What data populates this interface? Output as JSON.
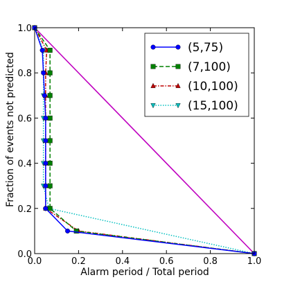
{
  "chart_data": {
    "type": "line",
    "title": "",
    "xlabel": "Alarm period / Total period",
    "ylabel": "Fraction of events not predicted",
    "xlim": [
      0.0,
      1.0
    ],
    "ylim": [
      0.0,
      1.0
    ],
    "xticks": [
      "0.0",
      "0.2",
      "0.4",
      "0.6",
      "0.8",
      "1.0"
    ],
    "yticks": [
      "0.0",
      "0.2",
      "0.4",
      "0.6",
      "0.8",
      "1.0"
    ],
    "grid": false,
    "legend_position": "top-right",
    "reference_line": {
      "x": [
        0.0,
        1.0
      ],
      "y": [
        1.0,
        0.0
      ],
      "color": "#bf00bf"
    },
    "series": [
      {
        "name": "(5,75)",
        "color": "#0000ff",
        "linestyle": "solid",
        "marker": "circle",
        "x": [
          0.0,
          0.035,
          0.04,
          0.045,
          0.05,
          0.05,
          0.05,
          0.05,
          0.05,
          0.05,
          0.05,
          0.15,
          1.0
        ],
        "y": [
          1.0,
          0.9,
          0.8,
          0.7,
          0.6,
          0.5,
          0.4,
          0.3,
          0.2,
          0.2,
          0.2,
          0.1,
          0.0
        ]
      },
      {
        "name": "(7,100)",
        "color": "#008000",
        "linestyle": "dashed",
        "marker": "square",
        "x": [
          0.0,
          0.07,
          0.07,
          0.07,
          0.07,
          0.07,
          0.07,
          0.07,
          0.07,
          0.19,
          1.0
        ],
        "y": [
          1.0,
          0.9,
          0.8,
          0.7,
          0.6,
          0.5,
          0.4,
          0.3,
          0.2,
          0.1,
          0.0
        ]
      },
      {
        "name": "(10,100)",
        "color": "#bf0000",
        "linestyle": "dashdot",
        "marker": "triangle-up",
        "x": [
          0.0,
          0.055,
          0.05,
          0.05,
          0.05,
          0.05,
          0.05,
          0.05,
          0.05,
          0.2,
          1.0
        ],
        "y": [
          1.0,
          0.9,
          0.8,
          0.7,
          0.6,
          0.5,
          0.4,
          0.3,
          0.2,
          0.1,
          0.0
        ]
      },
      {
        "name": "(15,100)",
        "color": "#00bfbf",
        "linestyle": "dotted",
        "marker": "triangle-down",
        "x": [
          0.0,
          0.04,
          0.04,
          0.04,
          0.04,
          0.04,
          0.04,
          0.04,
          0.065,
          1.0
        ],
        "y": [
          1.0,
          0.9,
          0.8,
          0.7,
          0.6,
          0.5,
          0.4,
          0.3,
          0.2,
          0.0
        ]
      }
    ]
  }
}
